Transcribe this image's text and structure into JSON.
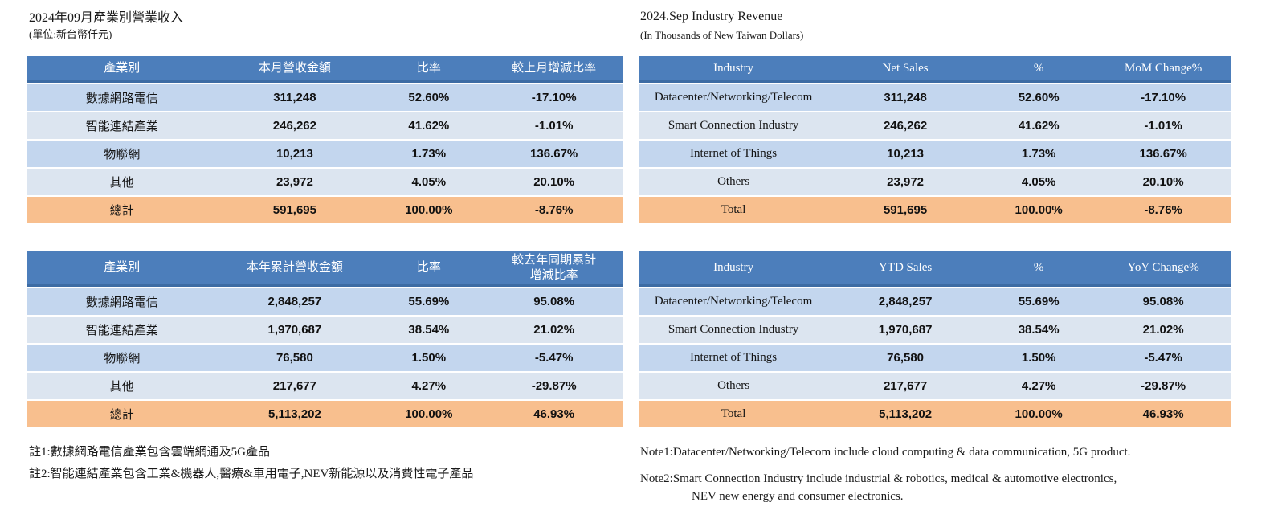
{
  "colors": {
    "header_bg": "#4C7EBB",
    "header_edge": "#3D6CA4",
    "row_odd_bg": "#C3D6EE",
    "row_even_bg": "#DCE5F0",
    "total_row_bg": "#F8BF8E",
    "header_text": "#FFFFFF",
    "body_text": "#1A1A1A"
  },
  "left": {
    "title": "2024年09月產業別營業收入",
    "subtitle": "(單位:新台幣仟元)",
    "notes": [
      "註1:數據網路電信產業包含雲端網通及5G產品",
      "註2:智能連結產業包含工業&機器人,醫療&車用電子,NEV新能源以及消費性電子產品"
    ]
  },
  "right": {
    "title": "2024.Sep Industry Revenue",
    "subtitle": "(In Thousands of New Taiwan Dollars)",
    "notes": [
      "Note1:Datacenter/Networking/Telecom include cloud computing & data communication, 5G product.",
      "Note2:Smart Connection Industry include industrial & robotics, medical & automotive electronics,\nNEV new energy and consumer electronics."
    ]
  },
  "tables": [
    {
      "id": "zh-monthly",
      "columns": [
        "產業別",
        "本月營收金額",
        "比率",
        "較上月增減比率"
      ],
      "rows": [
        [
          "數據網路電信",
          "311,248",
          "52.60%",
          "-17.10%"
        ],
        [
          "智能連結產業",
          "246,262",
          "41.62%",
          "-1.01%"
        ],
        [
          "物聯網",
          "10,213",
          "1.73%",
          "136.67%"
        ],
        [
          "其他",
          "23,972",
          "4.05%",
          "20.10%"
        ]
      ],
      "total": [
        "總計",
        "591,695",
        "100.00%",
        "-8.76%"
      ]
    },
    {
      "id": "zh-ytd",
      "columns": [
        "產業別",
        "本年累計營收金額",
        "比率",
        "較去年同期累計\n增減比率"
      ],
      "rows": [
        [
          "數據網路電信",
          "2,848,257",
          "55.69%",
          "95.08%"
        ],
        [
          "智能連結產業",
          "1,970,687",
          "38.54%",
          "21.02%"
        ],
        [
          "物聯網",
          "76,580",
          "1.50%",
          "-5.47%"
        ],
        [
          "其他",
          "217,677",
          "4.27%",
          "-29.87%"
        ]
      ],
      "total": [
        "總計",
        "5,113,202",
        "100.00%",
        "46.93%"
      ]
    },
    {
      "id": "en-monthly",
      "columns": [
        "Industry",
        "Net Sales",
        "%",
        "MoM Change%"
      ],
      "rows": [
        [
          "Datacenter/Networking/Telecom",
          "311,248",
          "52.60%",
          "-17.10%"
        ],
        [
          "Smart Connection Industry",
          "246,262",
          "41.62%",
          "-1.01%"
        ],
        [
          "Internet of Things",
          "10,213",
          "1.73%",
          "136.67%"
        ],
        [
          "Others",
          "23,972",
          "4.05%",
          "20.10%"
        ]
      ],
      "total": [
        "Total",
        "591,695",
        "100.00%",
        "-8.76%"
      ]
    },
    {
      "id": "en-ytd",
      "columns": [
        "Industry",
        "YTD Sales",
        "%",
        "YoY Change%"
      ],
      "rows": [
        [
          "Datacenter/Networking/Telecom",
          "2,848,257",
          "55.69%",
          "95.08%"
        ],
        [
          "Smart Connection Industry",
          "1,970,687",
          "38.54%",
          "21.02%"
        ],
        [
          "Internet of Things",
          "76,580",
          "1.50%",
          "-5.47%"
        ],
        [
          "Others",
          "217,677",
          "4.27%",
          "-29.87%"
        ]
      ],
      "total": [
        "Total",
        "5,113,202",
        "100.00%",
        "46.93%"
      ]
    }
  ]
}
